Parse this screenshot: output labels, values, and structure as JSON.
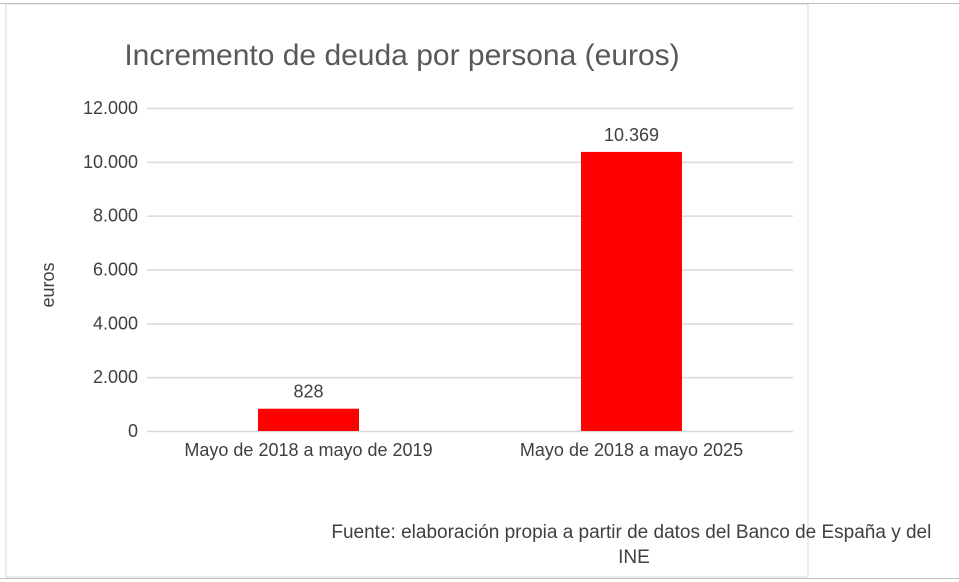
{
  "chart_data": {
    "type": "bar",
    "title": "Incremento de deuda por persona (euros)",
    "xlabel": "",
    "ylabel": "euros",
    "categories": [
      "Mayo de 2018 a mayo de 2019",
      "Mayo de 2018 a mayo 2025"
    ],
    "values": [
      828,
      10369
    ],
    "data_labels": [
      "828",
      "10.369"
    ],
    "ylim": [
      0,
      12000
    ],
    "yticks": [
      0,
      2000,
      4000,
      6000,
      8000,
      10000,
      12000
    ],
    "ytick_labels": [
      "0",
      "2.000",
      "4.000",
      "6.000",
      "8.000",
      "10.000",
      "12.000"
    ],
    "grid": true,
    "legend": "none",
    "bar_color": "#ff0000",
    "source_note": "Fuente: elaboración propia a partir de datos del Banco de España y del INE"
  }
}
